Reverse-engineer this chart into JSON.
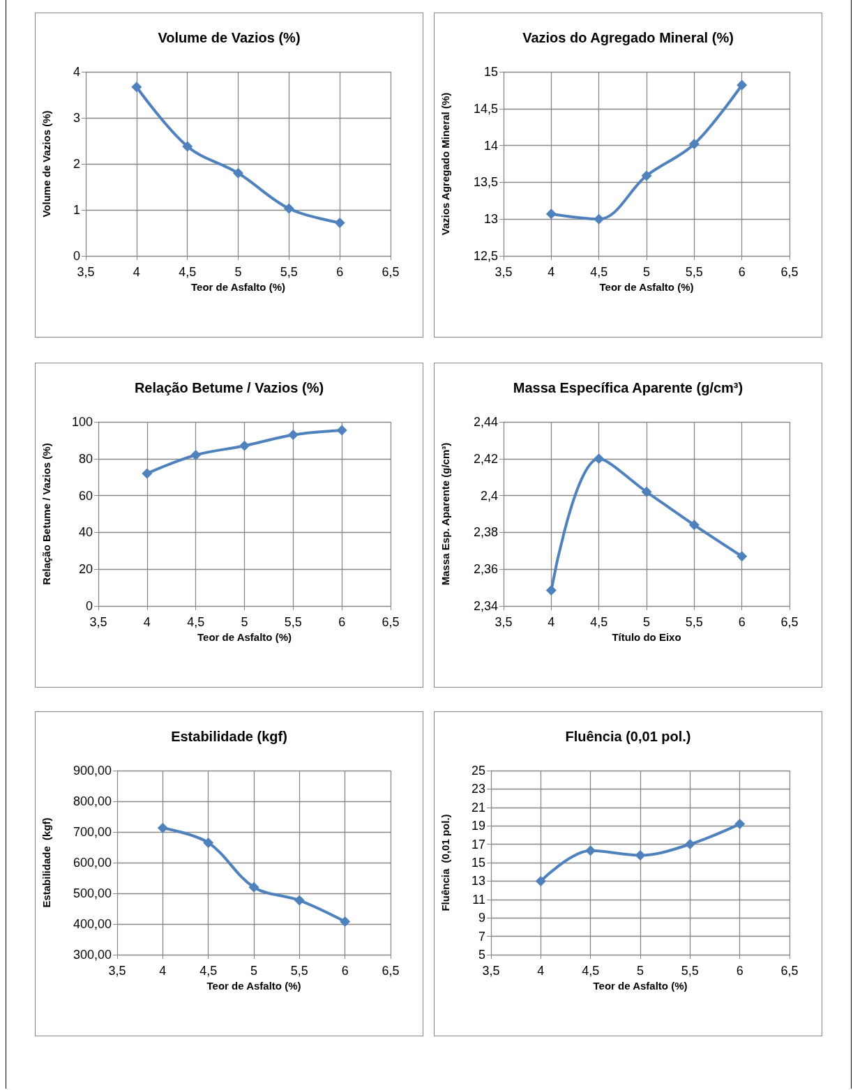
{
  "chart_data": [
    {
      "type": "line",
      "title": "Volume de Vazios (%)",
      "xlabel": "Teor de Asfalto (%)",
      "ylabel": "Volume de Vazios (%)",
      "x": [
        4,
        4.5,
        5,
        5.5,
        6
      ],
      "series": [
        {
          "color": "#4f81bd",
          "values": [
            3.67,
            2.38,
            1.8,
            1.03,
            0.72
          ]
        }
      ],
      "xlim": [
        3.5,
        6.5
      ],
      "xticks": [
        {
          "value": 3.5,
          "label": "3,5"
        },
        4,
        {
          "value": 4.5,
          "label": "4,5"
        },
        5,
        {
          "value": 5.5,
          "label": "5,5"
        },
        6,
        {
          "value": 6.5,
          "label": "6,5"
        }
      ],
      "ylim": [
        0,
        4
      ],
      "yticks": [
        0,
        1,
        2,
        3,
        4
      ],
      "grid": true,
      "marker": "diamond",
      "line_style": "solid"
    },
    {
      "type": "line",
      "title": "Vazios do Agregado Mineral (%)",
      "xlabel": "Teor de Asfalto (%)",
      "ylabel": "Vazios Agregado Mineral (%)",
      "x": [
        4,
        4.5,
        5,
        5.5,
        6
      ],
      "series": [
        {
          "color": "#4f81bd",
          "values": [
            13.07,
            13.0,
            13.59,
            14.02,
            14.82
          ]
        }
      ],
      "xlim": [
        3.5,
        6.5
      ],
      "xticks": [
        {
          "value": 3.5,
          "label": "3,5"
        },
        4,
        {
          "value": 4.5,
          "label": "4,5"
        },
        5,
        {
          "value": 5.5,
          "label": "5,5"
        },
        6,
        {
          "value": 6.5,
          "label": "6,5"
        }
      ],
      "ylim": [
        12.5,
        15
      ],
      "yticks": [
        {
          "value": 12.5,
          "label": "12,5"
        },
        13,
        {
          "value": 13.5,
          "label": "13,5"
        },
        14,
        {
          "value": 14.5,
          "label": "14,5"
        },
        15
      ],
      "grid": true,
      "marker": "diamond",
      "line_style": "solid"
    },
    {
      "type": "line",
      "title": "Relação Betume / Vazios (%)",
      "xlabel": "Teor de Asfalto (%)",
      "ylabel": "Relação Betume / Vazios (%)",
      "x": [
        4,
        4.5,
        5,
        5.5,
        6
      ],
      "series": [
        {
          "color": "#4f81bd",
          "values": [
            72,
            82,
            87,
            93,
            95.5
          ]
        }
      ],
      "xlim": [
        3.5,
        6.5
      ],
      "xticks": [
        {
          "value": 3.5,
          "label": "3,5"
        },
        4,
        {
          "value": 4.5,
          "label": "4,5"
        },
        5,
        {
          "value": 5.5,
          "label": "5,5"
        },
        6,
        {
          "value": 6.5,
          "label": "6,5"
        }
      ],
      "ylim": [
        0,
        100
      ],
      "yticks": [
        0,
        20,
        40,
        60,
        80,
        100
      ],
      "grid": true,
      "marker": "diamond",
      "line_style": "solid"
    },
    {
      "type": "line",
      "title": "Massa Específica Aparente (g/cm³)",
      "xlabel": "Título do Eixo",
      "ylabel": "Massa Esp. Aparente (g/cm³)",
      "x": [
        4,
        4.5,
        5,
        5.5,
        6
      ],
      "series": [
        {
          "color": "#4f81bd",
          "values": [
            2.3485,
            2.42,
            2.402,
            2.384,
            2.367
          ]
        }
      ],
      "xlim": [
        3.5,
        6.5
      ],
      "xticks": [
        {
          "value": 3.5,
          "label": "3,5"
        },
        4,
        {
          "value": 4.5,
          "label": "4,5"
        },
        5,
        {
          "value": 5.5,
          "label": "5,5"
        },
        6,
        {
          "value": 6.5,
          "label": "6,5"
        }
      ],
      "ylim": [
        2.34,
        2.44
      ],
      "yticks": [
        {
          "value": 2.34,
          "label": "2,34"
        },
        {
          "value": 2.36,
          "label": "2,36"
        },
        {
          "value": 2.38,
          "label": "2,38"
        },
        {
          "value": 2.4,
          "label": "2,4"
        },
        {
          "value": 2.42,
          "label": "2,42"
        },
        {
          "value": 2.44,
          "label": "2,44"
        }
      ],
      "grid": true,
      "marker": "diamond",
      "line_style": "solid"
    },
    {
      "type": "line",
      "title": "Estabilidade (kgf)",
      "xlabel": "Teor de Asfalto (%)",
      "ylabel": "Estabilidade  (kgf)",
      "x": [
        4,
        4.5,
        5,
        5.5,
        6
      ],
      "series": [
        {
          "color": "#4f81bd",
          "values": [
            713,
            665,
            520,
            477,
            408
          ]
        }
      ],
      "xlim": [
        3.5,
        6.5
      ],
      "xticks": [
        {
          "value": 3.5,
          "label": "3,5"
        },
        4,
        {
          "value": 4.5,
          "label": "4,5"
        },
        5,
        {
          "value": 5.5,
          "label": "5,5"
        },
        6,
        {
          "value": 6.5,
          "label": "6,5"
        }
      ],
      "ylim": [
        300,
        900
      ],
      "yticks": [
        {
          "value": 300,
          "label": "300,00"
        },
        {
          "value": 400,
          "label": "400,00"
        },
        {
          "value": 500,
          "label": "500,00"
        },
        {
          "value": 600,
          "label": "600,00"
        },
        {
          "value": 700,
          "label": "700,00"
        },
        {
          "value": 800,
          "label": "800,00"
        },
        {
          "value": 900,
          "label": "900,00"
        }
      ],
      "grid": true,
      "marker": "diamond",
      "line_style": "solid"
    },
    {
      "type": "line",
      "title": "Fluência (0,01 pol.)",
      "xlabel": "Teor de Asfalto (%)",
      "ylabel": "Fluência  (0,01 pol.)",
      "x": [
        4,
        4.5,
        5,
        5.5,
        6
      ],
      "series": [
        {
          "color": "#4f81bd",
          "values": [
            13,
            16.3,
            15.8,
            17,
            19.2
          ]
        }
      ],
      "xlim": [
        3.5,
        6.5
      ],
      "xticks": [
        {
          "value": 3.5,
          "label": "3,5"
        },
        4,
        {
          "value": 4.5,
          "label": "4,5"
        },
        5,
        {
          "value": 5.5,
          "label": "5,5"
        },
        6,
        {
          "value": 6.5,
          "label": "6,5"
        }
      ],
      "ylim": [
        5,
        25
      ],
      "yticks": [
        5,
        7,
        9,
        11,
        13,
        15,
        17,
        19,
        21,
        23,
        25
      ],
      "grid": true,
      "marker": "diamond",
      "line_style": "solid"
    }
  ]
}
